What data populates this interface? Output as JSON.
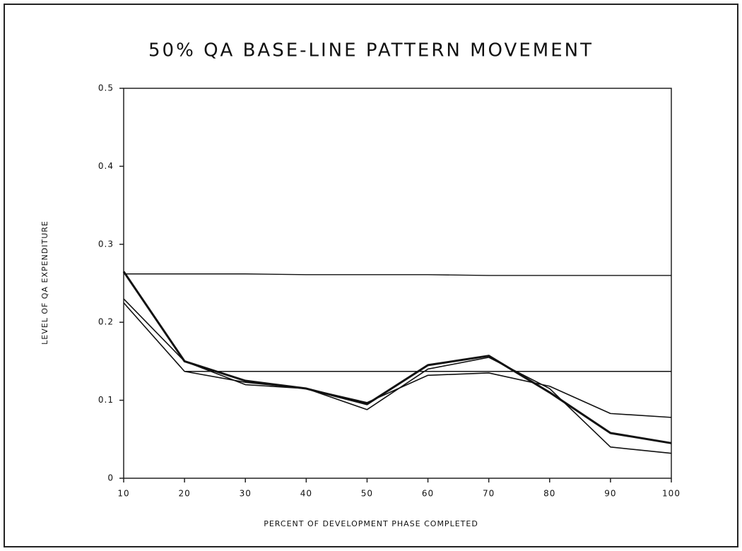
{
  "chart_data": {
    "type": "line",
    "title": "50% QA BASE-LINE PATTERN MOVEMENT",
    "x_label": "PERCENT OF DEVELOPMENT PHASE COMPLETED",
    "y_label": "LEVEL OF QA EXPENDITURE",
    "x": [
      10,
      20,
      30,
      40,
      50,
      60,
      70,
      80,
      90,
      100
    ],
    "series": [
      {
        "color": "#111111",
        "width": 3,
        "values": [
          0.265,
          0.15,
          0.125,
          0.115,
          0.095,
          0.145,
          0.157,
          0.11,
          0.058,
          0.045
        ]
      },
      {
        "color": "#111111",
        "width": 1.6,
        "values": [
          0.23,
          0.15,
          0.12,
          0.115,
          0.088,
          0.14,
          0.155,
          0.115,
          0.04,
          0.032
        ]
      },
      {
        "color": "#111111",
        "width": 1.6,
        "values": [
          0.225,
          0.137,
          0.123,
          0.115,
          0.097,
          0.132,
          0.135,
          0.118,
          0.083,
          0.078
        ]
      },
      {
        "color": "#111111",
        "width": 1.4,
        "values": [
          0.262,
          0.262,
          0.262,
          0.261,
          0.261,
          0.261,
          0.26,
          0.26,
          0.26,
          0.26
        ]
      },
      {
        "color": "#111111",
        "width": 1.4,
        "values": [
          null,
          0.137,
          0.137,
          0.137,
          0.137,
          0.137,
          0.137,
          0.137,
          0.137,
          0.137
        ]
      }
    ],
    "xlim": [
      10,
      100
    ],
    "xticks": [
      10,
      20,
      30,
      40,
      50,
      60,
      70,
      80,
      90,
      100
    ],
    "ylim": [
      0,
      0.5
    ],
    "yticks": [
      0,
      0.1,
      0.2,
      0.3,
      0.4,
      0.5
    ],
    "grid": false
  }
}
